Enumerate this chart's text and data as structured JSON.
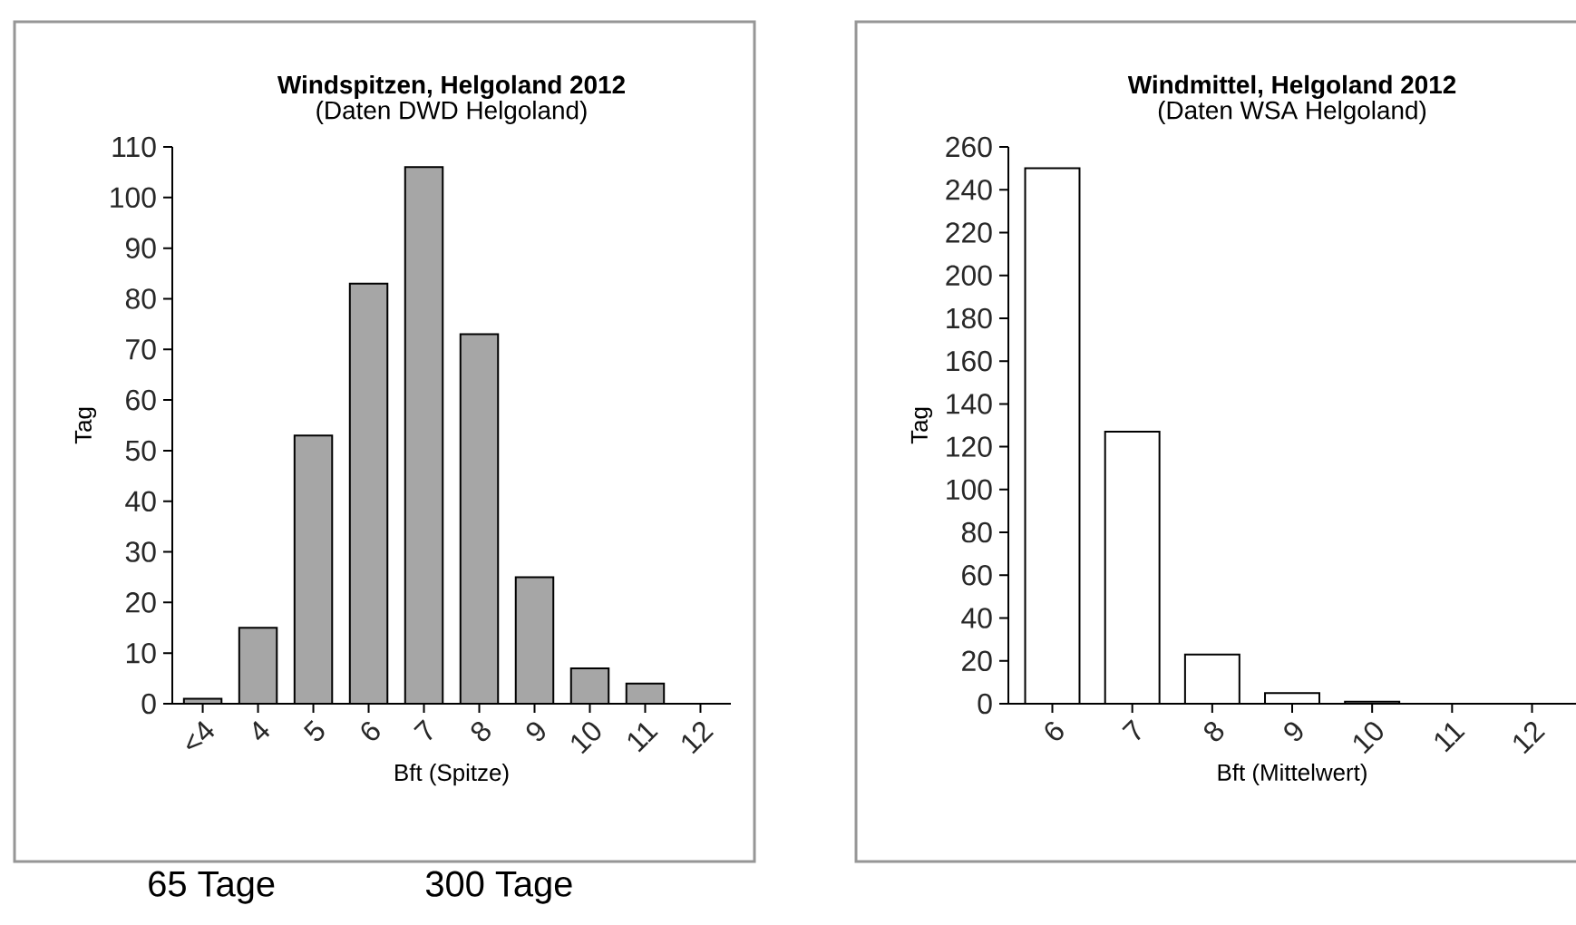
{
  "chart_data": [
    {
      "type": "bar",
      "title": "Windspitzen, Helgoland 2012",
      "subtitle": "(Daten DWD Helgoland)",
      "xlabel": "Bft (Spitze)",
      "ylabel": "Tag",
      "categories": [
        "<4",
        "4",
        "5",
        "6",
        "7",
        "8",
        "9",
        "10",
        "11",
        "12"
      ],
      "values": [
        1,
        15,
        53,
        83,
        106,
        73,
        25,
        7,
        4,
        0
      ],
      "color": "#a6a6a6",
      "ylim": [
        0,
        110
      ],
      "yticks": [
        0,
        10,
        20,
        30,
        40,
        50,
        60,
        70,
        80,
        90,
        100,
        110
      ],
      "annotations": [
        "65 Tage",
        "300 Tage"
      ]
    },
    {
      "type": "bar",
      "title": "Windmittel, Helgoland 2012",
      "subtitle": "(Daten WSA Helgoland)",
      "xlabel": "Bft (Mittelwert)",
      "ylabel": "Tag",
      "categories": [
        "6",
        "7",
        "8",
        "9",
        "10",
        "11",
        "12"
      ],
      "values": [
        250,
        127,
        23,
        5,
        1,
        0,
        0
      ],
      "color": "#ffffff",
      "ylim": [
        0,
        260
      ],
      "yticks": [
        0,
        20,
        40,
        60,
        80,
        100,
        120,
        140,
        160,
        180,
        200,
        220,
        240,
        260
      ]
    }
  ]
}
